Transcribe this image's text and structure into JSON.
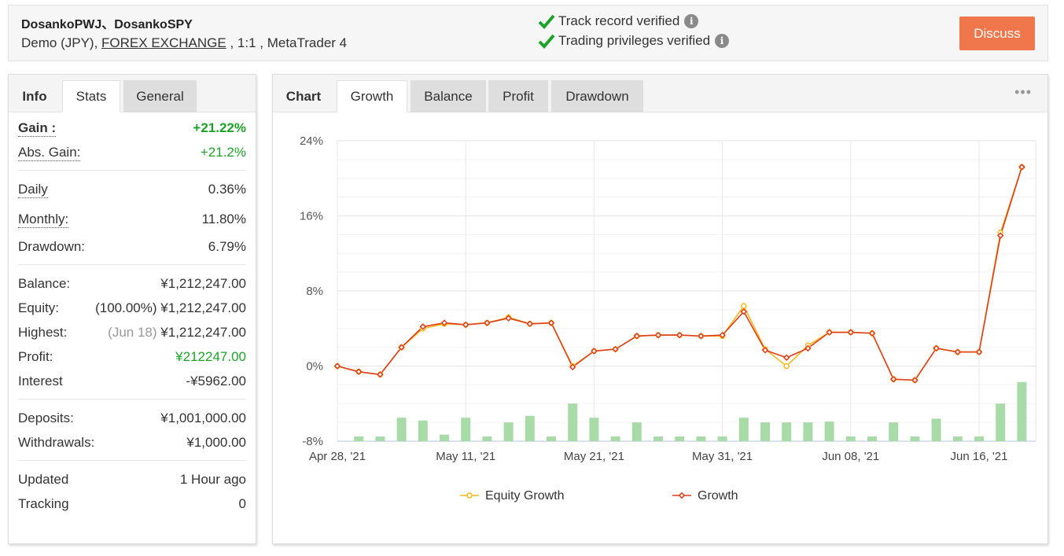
{
  "header": {
    "account_name": "DosankoPWJ、DosankoSPY",
    "info_prefix": "Demo (JPY), ",
    "broker_link": "FOREX EXCHANGE",
    "info_suffix": " , 1:1 , MetaTrader 4",
    "verified_1": "Track record verified",
    "verified_2": "Trading privileges verified",
    "info_icon": "i",
    "discuss_label": "Discuss",
    "check_color": "#1ea32a",
    "discuss_color": "#f0774b"
  },
  "stats_panel": {
    "tabs": [
      "Info",
      "Stats",
      "General"
    ],
    "active_tab": "Stats",
    "gain_label": "Gain :",
    "gain_value": "+21.22%",
    "abs_gain_label": "Abs. Gain:",
    "abs_gain_value": "+21.2%",
    "daily_label": "Daily",
    "daily_value": "0.36%",
    "monthly_label": "Monthly:",
    "monthly_value": "11.80%",
    "drawdown_label": "Drawdown:",
    "drawdown_value": "6.79%",
    "balance_label": "Balance:",
    "balance_value": "¥1,212,247.00",
    "equity_label": "Equity:",
    "equity_pct": "(100.00%)",
    "equity_value": "¥1,212,247.00",
    "highest_label": "Highest:",
    "highest_date": "(Jun 18)",
    "highest_value": "¥1,212,247.00",
    "profit_label": "Profit:",
    "profit_value": "¥212247.00",
    "interest_label": "Interest",
    "interest_value": "-¥5962.00",
    "deposits_label": "Deposits:",
    "deposits_value": "¥1,001,000.00",
    "withdrawals_label": "Withdrawals:",
    "withdrawals_value": "¥1,000.00",
    "updated_label": "Updated",
    "updated_value": "1 Hour ago",
    "tracking_label": "Tracking",
    "tracking_value": "0"
  },
  "chart_panel": {
    "tabs": [
      "Chart",
      "Growth",
      "Balance",
      "Profit",
      "Drawdown"
    ],
    "active_tab": "Growth",
    "more_icon": "•••"
  },
  "chart_data": {
    "type": "line",
    "y_ticks": [
      "24%",
      "16%",
      "8%",
      "0%",
      "-8%"
    ],
    "ylim": [
      -8,
      24
    ],
    "x_tick_labels": [
      "Apr 28, '21",
      "May 11, '21",
      "May 21, '21",
      "May 31, '21",
      "Jun 08, '21",
      "Jun 16, '21"
    ],
    "x_tick_index": [
      0,
      6,
      12,
      18,
      24,
      30
    ],
    "grid": true,
    "legend_position": "bottom-center",
    "series": [
      {
        "name": "Equity Growth",
        "color": "#f3b91a",
        "values": [
          0.0,
          -0.6,
          -0.9,
          2.0,
          4.0,
          4.5,
          4.4,
          4.6,
          5.2,
          4.5,
          4.6,
          0.0,
          1.6,
          1.8,
          3.2,
          3.3,
          3.3,
          3.2,
          3.2,
          6.4,
          1.8,
          0.0,
          2.2,
          3.6,
          3.6,
          3.5,
          -1.4,
          -1.5,
          1.9,
          1.5,
          1.5,
          14.2,
          21.2
        ]
      },
      {
        "name": "Growth",
        "color": "#e03c19",
        "values": [
          0.0,
          -0.6,
          -0.9,
          2.0,
          4.2,
          4.6,
          4.4,
          4.6,
          5.1,
          4.5,
          4.6,
          -0.1,
          1.6,
          1.8,
          3.2,
          3.3,
          3.3,
          3.2,
          3.3,
          5.8,
          1.7,
          0.9,
          1.9,
          3.6,
          3.6,
          3.5,
          -1.4,
          -1.5,
          1.9,
          1.5,
          1.5,
          13.9,
          21.2
        ]
      }
    ],
    "bars": {
      "color": "#a8dba8",
      "values": [
        0,
        0.5,
        0.5,
        2.5,
        2.2,
        0.7,
        2.5,
        0.5,
        2.0,
        2.7,
        0.5,
        4.0,
        2.5,
        0.5,
        2.0,
        0.5,
        0.5,
        0.5,
        0.5,
        2.5,
        2.0,
        2.0,
        2.0,
        2.1,
        0.5,
        0.5,
        2.0,
        0.5,
        2.4,
        0.5,
        0.5,
        4.0,
        6.3
      ]
    }
  }
}
